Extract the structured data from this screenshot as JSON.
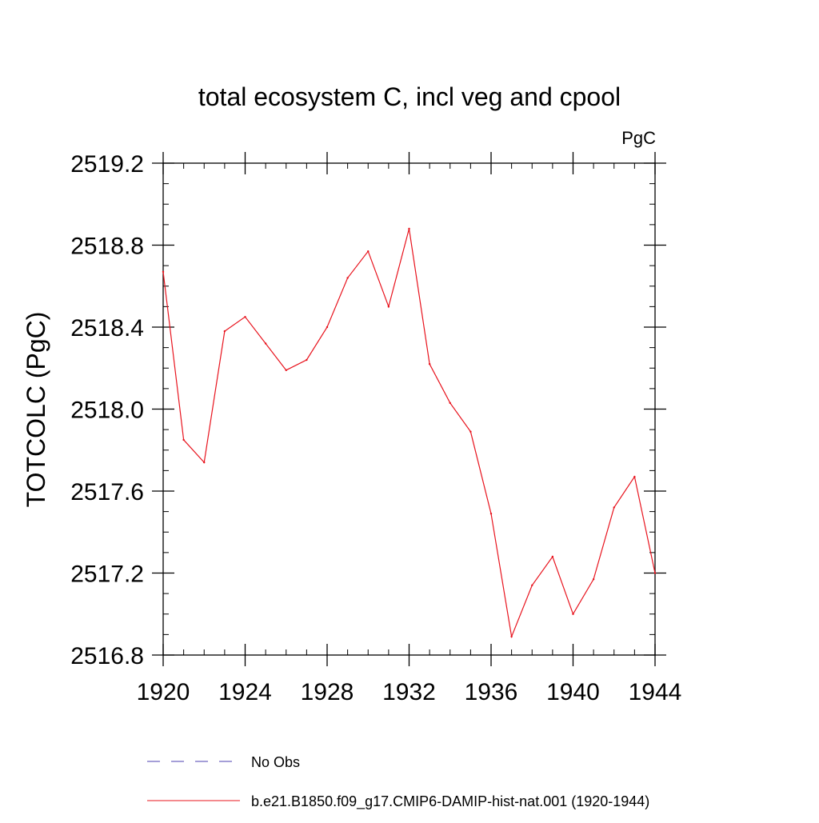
{
  "chart_data": {
    "type": "line",
    "title": "total ecosystem C, incl veg and cpool",
    "units": "PgC",
    "ylabel": "TOTCOLC  (PgC)",
    "xlabel": "",
    "xlim": [
      1920,
      1944
    ],
    "ylim": [
      2516.8,
      2519.2
    ],
    "x_ticks": [
      1920,
      1924,
      1928,
      1932,
      1936,
      1940,
      1944
    ],
    "x_tick_labels": [
      "1920",
      "1924",
      "1928",
      "1932",
      "1936",
      "1940",
      "1944"
    ],
    "y_ticks": [
      2516.8,
      2517.2,
      2517.6,
      2518.0,
      2518.4,
      2518.8,
      2519.2
    ],
    "y_tick_labels": [
      "2516.8",
      "2517.2",
      "2517.6",
      "2518.0",
      "2518.4",
      "2518.8",
      "2519.2"
    ],
    "grid": false,
    "legend_position": "bottom",
    "legend": [
      {
        "name": "No Obs",
        "color": "#4b3fb0",
        "style": "dashed"
      },
      {
        "name": "b.e21.B1850.f09_g17.CMIP6-DAMIP-hist-nat.001 (1920-1944)",
        "color": "#e8141e",
        "style": "solid"
      }
    ],
    "series": [
      {
        "name": "b.e21.B1850.f09_g17.CMIP6-DAMIP-hist-nat.001 (1920-1944)",
        "color": "#e8141e",
        "x": [
          1920,
          1921,
          1922,
          1923,
          1924,
          1925,
          1926,
          1927,
          1928,
          1929,
          1930,
          1931,
          1932,
          1933,
          1934,
          1935,
          1936,
          1937,
          1938,
          1939,
          1940,
          1941,
          1942,
          1943,
          1944
        ],
        "values": [
          2518.67,
          2517.85,
          2517.74,
          2518.38,
          2518.45,
          2518.32,
          2518.19,
          2518.24,
          2518.4,
          2518.64,
          2518.77,
          2518.5,
          2518.88,
          2518.22,
          2518.03,
          2517.89,
          2517.49,
          2516.89,
          2517.14,
          2517.28,
          2517.0,
          2517.17,
          2517.52,
          2517.67,
          2517.2
        ]
      }
    ]
  }
}
